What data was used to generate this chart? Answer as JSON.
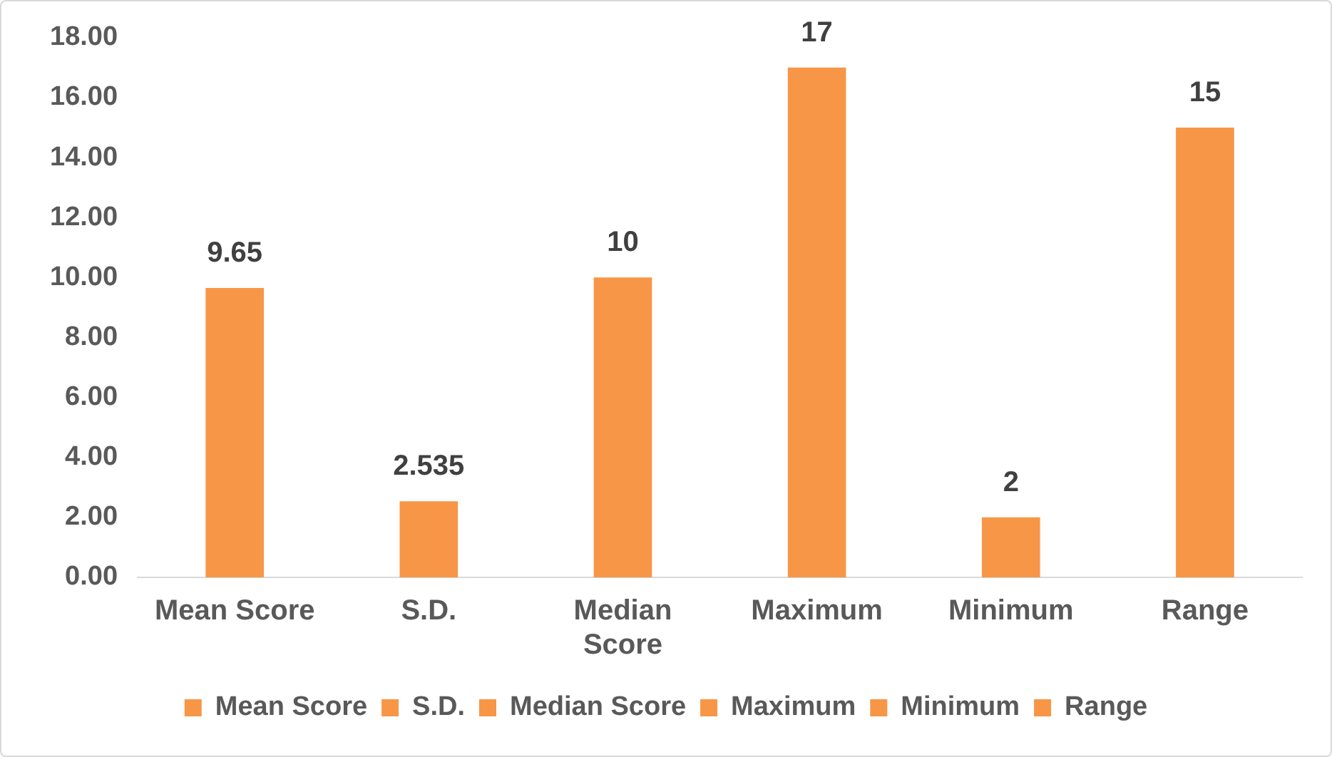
{
  "chart_data": {
    "type": "bar",
    "categories": [
      "Mean Score",
      "S.D.",
      "Median Score",
      "Maximum",
      "Minimum",
      "Range"
    ],
    "series": [
      {
        "name": "Mean Score",
        "color": "#f79646",
        "values": [
          9.65,
          null,
          null,
          null,
          null,
          null
        ]
      },
      {
        "name": "S.D.",
        "color": "#f79646",
        "values": [
          null,
          2.535,
          null,
          null,
          null,
          null
        ]
      },
      {
        "name": "Median Score",
        "color": "#f79646",
        "values": [
          null,
          null,
          10,
          null,
          null,
          null
        ]
      },
      {
        "name": "Maximum",
        "color": "#f79646",
        "values": [
          null,
          null,
          null,
          17,
          null,
          null
        ]
      },
      {
        "name": "Minimum",
        "color": "#f79646",
        "values": [
          null,
          null,
          null,
          null,
          2,
          null
        ]
      },
      {
        "name": "Range",
        "color": "#f79646",
        "values": [
          null,
          null,
          null,
          null,
          null,
          15
        ]
      }
    ],
    "ylim": [
      0,
      18
    ],
    "yticks": [
      {
        "value": 0,
        "label": "0.00"
      },
      {
        "value": 2,
        "label": "2.00"
      },
      {
        "value": 4,
        "label": "4.00"
      },
      {
        "value": 6,
        "label": "6.00"
      },
      {
        "value": 8,
        "label": "8.00"
      },
      {
        "value": 10,
        "label": "10.00"
      },
      {
        "value": 12,
        "label": "12.00"
      },
      {
        "value": 14,
        "label": "14.00"
      },
      {
        "value": 16,
        "label": "16.00"
      },
      {
        "value": 18,
        "label": "18.00"
      }
    ],
    "grid": false,
    "legend": "bottom",
    "data_labels": true
  }
}
